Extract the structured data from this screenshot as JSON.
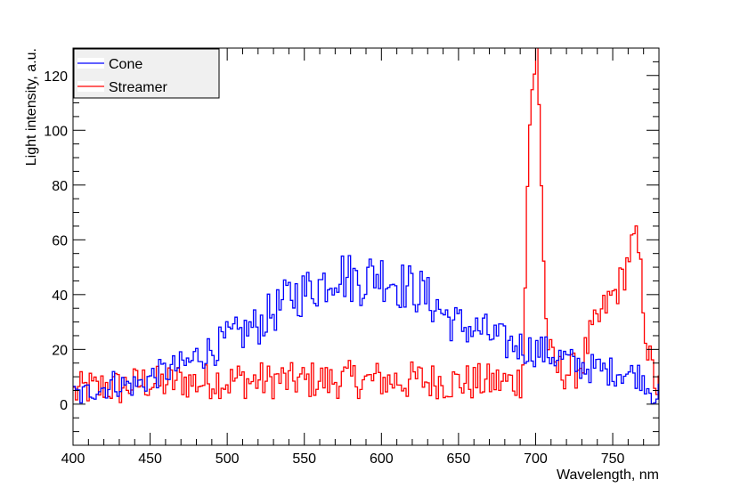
{
  "chart_data": {
    "type": "line",
    "xlabel": "Wavelength, nm",
    "ylabel": "Light intensity, a.u.",
    "xlim": [
      400,
      780
    ],
    "ylim": [
      -15,
      130
    ],
    "x_ticks": [
      400,
      450,
      500,
      550,
      600,
      650,
      700,
      750
    ],
    "y_ticks": [
      0,
      20,
      40,
      60,
      80,
      100,
      120
    ],
    "grid": false,
    "legend_position": "top-left",
    "step_width_nm": 1.5,
    "series": [
      {
        "name": "Cone",
        "color": "#0000ff",
        "x": [
          400,
          405,
          410,
          415,
          420,
          425,
          430,
          435,
          440,
          445,
          450,
          455,
          460,
          465,
          470,
          475,
          480,
          485,
          490,
          495,
          500,
          505,
          510,
          515,
          520,
          525,
          530,
          535,
          540,
          545,
          550,
          555,
          560,
          565,
          570,
          575,
          580,
          585,
          590,
          595,
          600,
          605,
          610,
          615,
          620,
          625,
          630,
          635,
          640,
          645,
          650,
          655,
          660,
          665,
          670,
          675,
          680,
          685,
          690,
          695,
          700,
          705,
          710,
          715,
          720,
          725,
          730,
          735,
          740,
          745,
          750,
          755,
          760,
          765,
          770,
          775,
          780
        ],
        "y": [
          4,
          3,
          5,
          6,
          6,
          8,
          7,
          7,
          7,
          8,
          10,
          11,
          12,
          13,
          14,
          15,
          18,
          19,
          20,
          22,
          24,
          25,
          26,
          28,
          29,
          32,
          34,
          36,
          40,
          40,
          41,
          43,
          44,
          46,
          49,
          47,
          46,
          45,
          46,
          48,
          47,
          46,
          44,
          43,
          42,
          41,
          38,
          36,
          33,
          30,
          29,
          28,
          27,
          27,
          25,
          24,
          22,
          22,
          21,
          20,
          20,
          19,
          18,
          17,
          16,
          14,
          14,
          13,
          13,
          12,
          12,
          12,
          11,
          11,
          9,
          4,
          3
        ]
      },
      {
        "name": "Streamer",
        "color": "#ff0000",
        "x": [
          400,
          405,
          410,
          415,
          420,
          425,
          430,
          435,
          440,
          445,
          450,
          455,
          460,
          465,
          470,
          475,
          480,
          485,
          490,
          495,
          500,
          505,
          510,
          515,
          520,
          525,
          530,
          535,
          540,
          545,
          550,
          555,
          560,
          565,
          570,
          575,
          580,
          585,
          590,
          595,
          600,
          605,
          610,
          615,
          620,
          625,
          630,
          635,
          640,
          645,
          650,
          655,
          660,
          665,
          670,
          675,
          680,
          685,
          690,
          692,
          694,
          696,
          698,
          699,
          700,
          701,
          702,
          704,
          706,
          708,
          710,
          715,
          720,
          725,
          730,
          735,
          740,
          745,
          750,
          755,
          758,
          760,
          762,
          764,
          766,
          768,
          770,
          772,
          774,
          776,
          778,
          780
        ],
        "y": [
          4,
          5,
          6,
          5,
          7,
          6,
          6,
          7,
          7,
          8,
          8,
          7,
          8,
          8,
          9,
          8,
          8,
          8,
          9,
          9,
          8,
          9,
          9,
          8,
          9,
          8,
          9,
          9,
          8,
          9,
          8,
          9,
          9,
          8,
          9,
          9,
          9,
          9,
          8,
          9,
          9,
          8,
          9,
          8,
          9,
          9,
          8,
          9,
          8,
          8,
          8,
          8,
          8,
          8,
          8,
          8,
          8,
          8,
          9,
          30,
          80,
          110,
          118,
          122,
          130,
          120,
          100,
          60,
          30,
          20,
          15,
          12,
          12,
          12,
          16,
          25,
          30,
          36,
          40,
          45,
          50,
          55,
          58,
          60,
          55,
          45,
          30,
          20,
          14,
          10,
          6,
          5
        ]
      }
    ]
  }
}
